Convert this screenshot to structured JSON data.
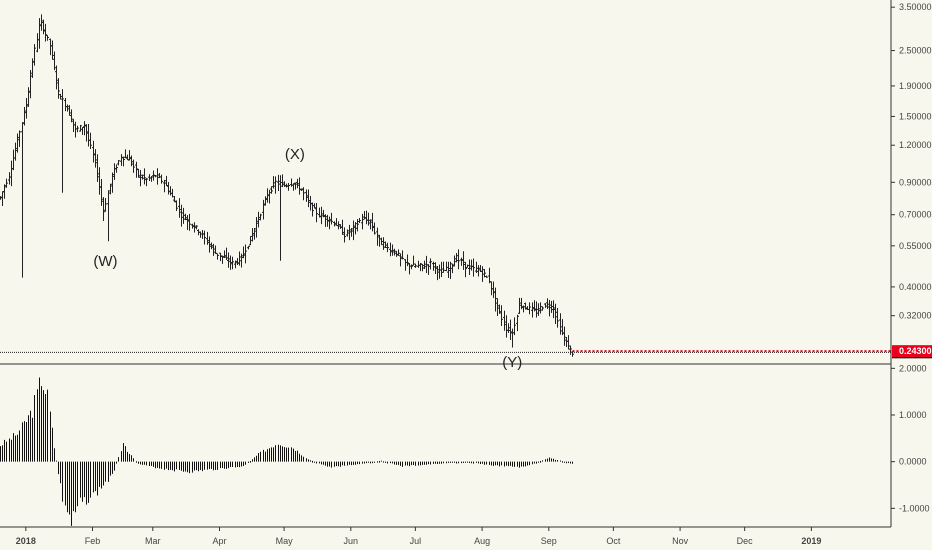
{
  "chart_data": [
    {
      "type": "ohlc",
      "scale": "log",
      "grid": false,
      "ylim": [
        0.22,
        3.7
      ],
      "y_ticks": [
        "3.50000",
        "2.50000",
        "1.90000",
        "1.50000",
        "1.20000",
        "0.90000",
        "0.70000",
        "0.55000",
        "0.40000",
        "0.32000"
      ],
      "x_ticks": [
        "2018",
        "Feb",
        "Mar",
        "Apr",
        "May",
        "Jun",
        "Jul",
        "Aug",
        "Sep",
        "Oct",
        "Nov",
        "Dec",
        "2019"
      ],
      "x_range": [
        "2017-12-20",
        "2019-02-07"
      ],
      "last_price": "0.24085",
      "alert_price": "0.24300",
      "alert_color": "#e8001c",
      "wave_labels": [
        {
          "text": "(W)",
          "date": "2018-02-07",
          "value": 0.47
        },
        {
          "text": "(X)",
          "date": "2018-05-06",
          "value": 1.08
        },
        {
          "text": "(Y)",
          "date": "2018-08-15",
          "value": 0.215
        }
      ],
      "path": [
        [
          "2017-12-20",
          0.8
        ],
        [
          "2017-12-24",
          0.95
        ],
        [
          "2017-12-28",
          1.25
        ],
        [
          "2018-01-01",
          1.65
        ],
        [
          "2018-01-04",
          2.3
        ],
        [
          "2018-01-07",
          3.0
        ],
        [
          "2018-01-08",
          3.1
        ],
        [
          "2018-01-12",
          2.6
        ],
        [
          "2018-01-16",
          1.8
        ],
        [
          "2018-01-20",
          1.6
        ],
        [
          "2018-01-24",
          1.35
        ],
        [
          "2018-01-28",
          1.4
        ],
        [
          "2018-02-02",
          1.05
        ],
        [
          "2018-02-06",
          0.72
        ],
        [
          "2018-02-10",
          0.95
        ],
        [
          "2018-02-14",
          1.1
        ],
        [
          "2018-02-18",
          1.08
        ],
        [
          "2018-02-22",
          0.95
        ],
        [
          "2018-02-26",
          0.92
        ],
        [
          "2018-03-02",
          0.95
        ],
        [
          "2018-03-06",
          0.9
        ],
        [
          "2018-03-10",
          0.8
        ],
        [
          "2018-03-14",
          0.7
        ],
        [
          "2018-03-18",
          0.66
        ],
        [
          "2018-03-22",
          0.62
        ],
        [
          "2018-03-26",
          0.57
        ],
        [
          "2018-03-30",
          0.52
        ],
        [
          "2018-04-03",
          0.5
        ],
        [
          "2018-04-07",
          0.48
        ],
        [
          "2018-04-11",
          0.5
        ],
        [
          "2018-04-15",
          0.58
        ],
        [
          "2018-04-19",
          0.68
        ],
        [
          "2018-04-23",
          0.82
        ],
        [
          "2018-04-27",
          0.9
        ],
        [
          "2018-05-01",
          0.88
        ],
        [
          "2018-05-05",
          0.9
        ],
        [
          "2018-05-09",
          0.85
        ],
        [
          "2018-05-13",
          0.75
        ],
        [
          "2018-05-17",
          0.7
        ],
        [
          "2018-05-21",
          0.68
        ],
        [
          "2018-05-25",
          0.65
        ],
        [
          "2018-05-29",
          0.6
        ],
        [
          "2018-06-02",
          0.63
        ],
        [
          "2018-06-06",
          0.68
        ],
        [
          "2018-06-10",
          0.66
        ],
        [
          "2018-06-14",
          0.57
        ],
        [
          "2018-06-18",
          0.54
        ],
        [
          "2018-06-22",
          0.52
        ],
        [
          "2018-06-26",
          0.48
        ],
        [
          "2018-06-30",
          0.47
        ],
        [
          "2018-07-04",
          0.47
        ],
        [
          "2018-07-08",
          0.48
        ],
        [
          "2018-07-12",
          0.45
        ],
        [
          "2018-07-16",
          0.46
        ],
        [
          "2018-07-20",
          0.5
        ],
        [
          "2018-07-24",
          0.47
        ],
        [
          "2018-07-28",
          0.46
        ],
        [
          "2018-08-01",
          0.45
        ],
        [
          "2018-08-04",
          0.42
        ],
        [
          "2018-08-08",
          0.34
        ],
        [
          "2018-08-12",
          0.29
        ],
        [
          "2018-08-15",
          0.28
        ],
        [
          "2018-08-18",
          0.35
        ],
        [
          "2018-08-22",
          0.34
        ],
        [
          "2018-08-26",
          0.33
        ],
        [
          "2018-08-30",
          0.35
        ],
        [
          "2018-09-03",
          0.34
        ],
        [
          "2018-09-06",
          0.29
        ],
        [
          "2018-09-10",
          0.25
        ],
        [
          "2018-09-12",
          0.24
        ]
      ],
      "wicks": [
        {
          "date": "2017-12-30",
          "low": 0.43
        },
        {
          "date": "2018-01-18",
          "low": 0.83
        },
        {
          "date": "2018-02-08",
          "low": 0.57
        },
        {
          "date": "2018-04-29",
          "low": 0.49
        },
        {
          "date": "2018-08-15",
          "low": 0.25
        }
      ]
    },
    {
      "type": "histogram",
      "ylim": [
        -1.4,
        2.05
      ],
      "y_ticks": [
        "2.0000",
        "1.0000",
        "0.0000",
        "-1.0000"
      ],
      "x_range": [
        "2017-12-20",
        "2019-02-07"
      ],
      "path": [
        [
          "2017-12-20",
          0.35
        ],
        [
          "2017-12-28",
          0.6
        ],
        [
          "2018-01-04",
          1.1
        ],
        [
          "2018-01-08",
          1.8
        ],
        [
          "2018-01-11",
          1.4
        ],
        [
          "2018-01-14",
          0.3
        ],
        [
          "2018-01-18",
          -0.8
        ],
        [
          "2018-01-22",
          -1.35
        ],
        [
          "2018-01-26",
          -0.9
        ],
        [
          "2018-02-02",
          -0.7
        ],
        [
          "2018-02-10",
          -0.3
        ],
        [
          "2018-02-15",
          0.35
        ],
        [
          "2018-02-22",
          -0.05
        ],
        [
          "2018-03-05",
          -0.15
        ],
        [
          "2018-03-18",
          -0.22
        ],
        [
          "2018-04-01",
          -0.15
        ],
        [
          "2018-04-12",
          -0.1
        ],
        [
          "2018-04-20",
          0.2
        ],
        [
          "2018-04-28",
          0.4
        ],
        [
          "2018-05-05",
          0.3
        ],
        [
          "2018-05-12",
          0.05
        ],
        [
          "2018-05-22",
          -0.12
        ],
        [
          "2018-06-05",
          -0.05
        ],
        [
          "2018-06-15",
          0.02
        ],
        [
          "2018-06-25",
          -0.1
        ],
        [
          "2018-07-10",
          -0.05
        ],
        [
          "2018-07-25",
          0.0
        ],
        [
          "2018-08-05",
          -0.08
        ],
        [
          "2018-08-20",
          -0.12
        ],
        [
          "2018-09-01",
          0.08
        ],
        [
          "2018-09-12",
          -0.05
        ]
      ]
    }
  ]
}
